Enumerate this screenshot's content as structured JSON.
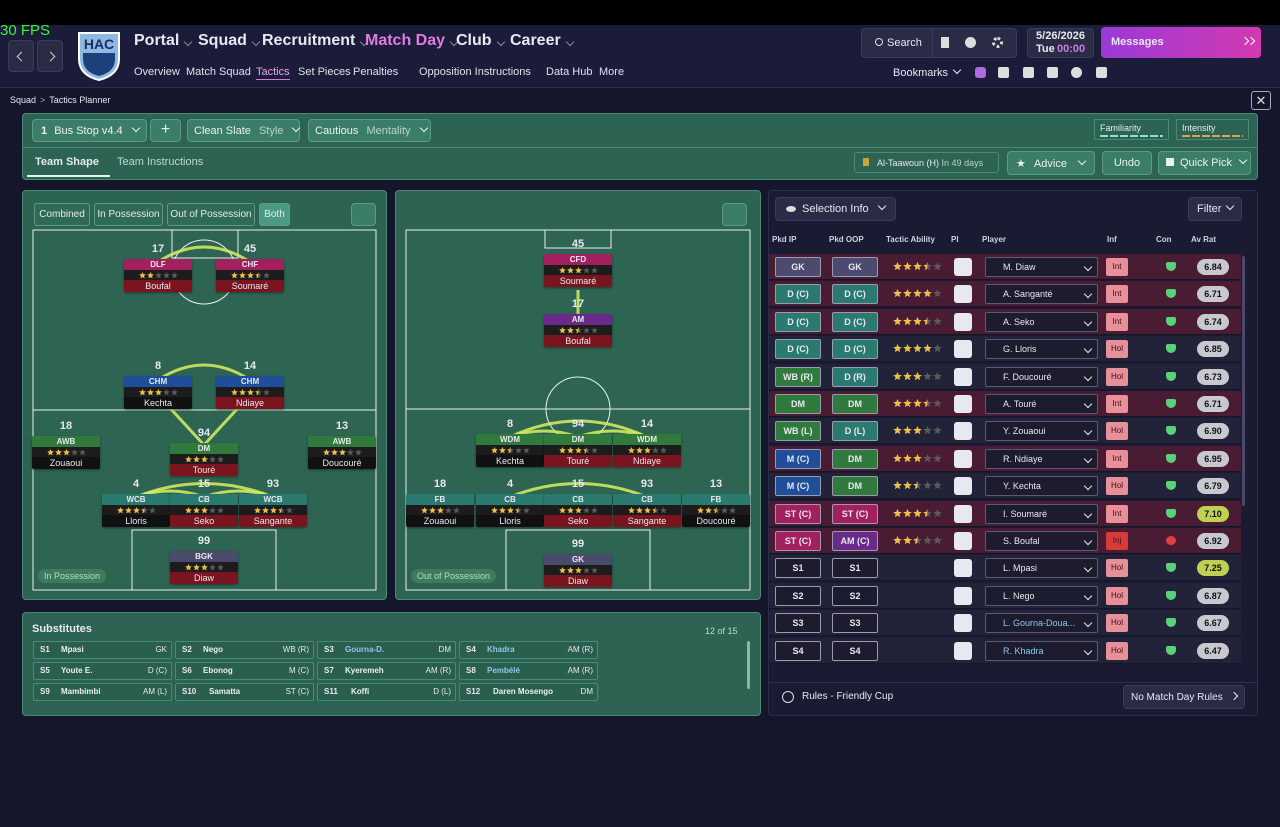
{
  "top": {
    "fps": "30 FPS",
    "badge": "HAC",
    "nav": [
      "Portal",
      "Squad",
      "Recruitment",
      "Match Day",
      "Club",
      "Career"
    ],
    "subnav": [
      "Overview",
      "Match Squad",
      "Tactics",
      "Set Pieces",
      "Penalties",
      "Opposition Instructions",
      "Data Hub",
      "More"
    ],
    "search": "Search",
    "date": "5/26/2026",
    "day": "Tue",
    "time": "00:00",
    "messages": "Messages",
    "bookmarks": "Bookmarks"
  },
  "breadcrumb": [
    "Squad",
    "Tactics Planner"
  ],
  "tactic_bar": {
    "slot": "1",
    "name": "Bus Stop v4.4",
    "style_value": "Clean Slate",
    "style_label": "Style",
    "mentality_value": "Cautious",
    "mentality_label": "Mentality",
    "familiarity": "Familiarity",
    "intensity": "Intensity"
  },
  "tabs": [
    "Team Shape",
    "Team Instructions"
  ],
  "next_match": {
    "opponent": "Al-Taawoun (H)",
    "when": "In 49 days"
  },
  "actions": [
    "Advice",
    "Undo",
    "Quick Pick"
  ],
  "view_toggles": [
    "Combined",
    "In Possession",
    "Out of Possession",
    "Both"
  ],
  "pitches": [
    {
      "label": "In Possession",
      "players": [
        {
          "number": "17",
          "role": "DLF",
          "name": "Boufal",
          "stars": 2,
          "color": "#a3205f",
          "bar": "#7a1520"
        },
        {
          "number": "45",
          "role": "CHF",
          "name": "Soumaré",
          "stars": 3.5,
          "color": "#a3205f",
          "bar": "#7a1520"
        },
        {
          "number": "8",
          "role": "CHM",
          "name": "Kechta",
          "stars": 3,
          "color": "#1f4f9a",
          "bar": "#111111"
        },
        {
          "number": "14",
          "role": "CHM",
          "name": "Ndiaye",
          "stars": 3.5,
          "color": "#1f4f9a",
          "bar": "#7a1520"
        },
        {
          "number": "18",
          "role": "AWB",
          "name": "Zouaoui",
          "stars": 3,
          "color": "#2f7a3c",
          "bar": "#111111"
        },
        {
          "number": "94",
          "role": "DM",
          "name": "Touré",
          "stars": 3,
          "color": "#2f7a3c",
          "bar": "#7a1520"
        },
        {
          "number": "13",
          "role": "AWB",
          "name": "Doucouré",
          "stars": 3,
          "color": "#2f7a3c",
          "bar": "#111111"
        },
        {
          "number": "4",
          "role": "WCB",
          "name": "Lloris",
          "stars": 3.5,
          "color": "#2a7a70",
          "bar": "#111111"
        },
        {
          "number": "15",
          "role": "CB",
          "name": "Seko",
          "stars": 3,
          "color": "#2a7a70",
          "bar": "#7a1520"
        },
        {
          "number": "93",
          "role": "WCB",
          "name": "Sangante",
          "stars": 3.5,
          "color": "#2a7a70",
          "bar": "#7a1520"
        },
        {
          "number": "99",
          "role": "BGK",
          "name": "Diaw",
          "stars": 3,
          "color": "#4a4a6a",
          "bar": "#7a1520"
        }
      ]
    },
    {
      "label": "Out of Possession",
      "players": [
        {
          "number": "45",
          "role": "CFD",
          "name": "Soumaré",
          "stars": 3,
          "color": "#a3205f",
          "bar": "#7a1520"
        },
        {
          "number": "17",
          "role": "AM",
          "name": "Boufal",
          "stars": 2.5,
          "color": "#6a2a8a",
          "bar": "#7a1520"
        },
        {
          "number": "8",
          "role": "WDM",
          "name": "Kechta",
          "stars": 2.5,
          "color": "#2f7a3c",
          "bar": "#111111"
        },
        {
          "number": "94",
          "role": "DM",
          "name": "Touré",
          "stars": 3.5,
          "color": "#2f7a3c",
          "bar": "#7a1520"
        },
        {
          "number": "14",
          "role": "WDM",
          "name": "Ndiaye",
          "stars": 3,
          "color": "#2f7a3c",
          "bar": "#7a1520"
        },
        {
          "number": "18",
          "role": "FB",
          "name": "Zouaoui",
          "stars": 3,
          "color": "#2a7a70",
          "bar": "#111111"
        },
        {
          "number": "4",
          "role": "CB",
          "name": "Lloris",
          "stars": 3.5,
          "color": "#2a7a70",
          "bar": "#111111"
        },
        {
          "number": "15",
          "role": "CB",
          "name": "Seko",
          "stars": 3,
          "color": "#2a7a70",
          "bar": "#7a1520"
        },
        {
          "number": "93",
          "role": "CB",
          "name": "Sangante",
          "stars": 3.5,
          "color": "#2a7a70",
          "bar": "#7a1520"
        },
        {
          "number": "13",
          "role": "FB",
          "name": "Doucouré",
          "stars": 2.5,
          "color": "#2a7a70",
          "bar": "#111111"
        },
        {
          "number": "99",
          "role": "GK",
          "name": "Diaw",
          "stars": 3,
          "color": "#4a4a6a",
          "bar": "#7a1520"
        }
      ]
    }
  ],
  "substitutes": {
    "title": "Substitutes",
    "count": "12 of 15",
    "rows": [
      {
        "slot": "S1",
        "name": "Mpasi",
        "position": "GK"
      },
      {
        "slot": "S2",
        "name": "Nego",
        "position": "WB (R)"
      },
      {
        "slot": "S3",
        "name": "Gourna-D.",
        "position": "DM"
      },
      {
        "slot": "S4",
        "name": "Khadra",
        "position": "AM (R)"
      },
      {
        "slot": "S5",
        "name": "Youte E.",
        "position": "D (C)"
      },
      {
        "slot": "S6",
        "name": "Ebonog",
        "position": "M (C)"
      },
      {
        "slot": "S7",
        "name": "Kyeremeh",
        "position": "AM (R)"
      },
      {
        "slot": "S8",
        "name": "Pembélé",
        "position": "AM (R)"
      },
      {
        "slot": "S9",
        "name": "Mambimbi",
        "position": "AM (L)"
      },
      {
        "slot": "S10",
        "name": "Samatta",
        "position": "ST (C)"
      },
      {
        "slot": "S11",
        "name": "Koffi",
        "position": "D (L)"
      },
      {
        "slot": "S12",
        "name": "Daren Mosengo",
        "position": "DM"
      }
    ]
  },
  "selection": {
    "button": "Selection Info",
    "filter": "Filter",
    "headers": [
      "Pkd IP",
      "Pkd OOP",
      "Tactic Ability",
      "PI",
      "Player",
      "Inf",
      "Con",
      "Av Rat"
    ],
    "rows": [
      {
        "ip": "GK",
        "oop": "GK",
        "ip_color": "#4c4a6e",
        "oop_color": "#4c4a6e",
        "ability": 3.5,
        "player": "M. Diaw",
        "inf": "Int",
        "rating": "6.84"
      },
      {
        "ip": "D (C)",
        "oop": "D (C)",
        "ip_color": "#2a7a70",
        "oop_color": "#2a7a70",
        "ability": 4,
        "player": "A. Sanganté",
        "inf": "Int",
        "rating": "6.71"
      },
      {
        "ip": "D (C)",
        "oop": "D (C)",
        "ip_color": "#2a7a70",
        "oop_color": "#2a7a70",
        "ability": 3.5,
        "player": "A. Seko",
        "inf": "Int",
        "rating": "6.74"
      },
      {
        "ip": "D (C)",
        "oop": "D (C)",
        "ip_color": "#2a7a70",
        "oop_color": "#2a7a70",
        "ability": 4,
        "player": "G. Lloris",
        "inf": "Hol",
        "rating": "6.85"
      },
      {
        "ip": "WB (R)",
        "oop": "D (R)",
        "ip_color": "#2f7a3c",
        "oop_color": "#2a7a70",
        "ability": 3,
        "player": "F. Doucouré",
        "inf": "Hol",
        "rating": "6.73"
      },
      {
        "ip": "DM",
        "oop": "DM",
        "ip_color": "#2f7a3c",
        "oop_color": "#2f7a3c",
        "ability": 3.5,
        "player": "A. Touré",
        "inf": "Int",
        "rating": "6.71"
      },
      {
        "ip": "WB (L)",
        "oop": "D (L)",
        "ip_color": "#2f7a3c",
        "oop_color": "#2a7a70",
        "ability": 3,
        "player": "Y. Zouaoui",
        "inf": "Hol",
        "rating": "6.90"
      },
      {
        "ip": "M (C)",
        "oop": "DM",
        "ip_color": "#1f4f9a",
        "oop_color": "#2f7a3c",
        "ability": 3,
        "player": "R. Ndiaye",
        "inf": "Int",
        "rating": "6.95"
      },
      {
        "ip": "M (C)",
        "oop": "DM",
        "ip_color": "#1f4f9a",
        "oop_color": "#2f7a3c",
        "ability": 2.5,
        "player": "Y. Kechta",
        "inf": "Hol",
        "rating": "6.79"
      },
      {
        "ip": "ST (C)",
        "oop": "ST (C)",
        "ip_color": "#a3205f",
        "oop_color": "#a3205f",
        "ability": 3.5,
        "player": "I. Soumaré",
        "inf": "Int",
        "rating": "7.10"
      },
      {
        "ip": "ST (C)",
        "oop": "AM (C)",
        "ip_color": "#a3205f",
        "oop_color": "#6a2a8a",
        "ability": 2.5,
        "player": "S. Boufal",
        "inf": "Inj",
        "rating": "6.92"
      },
      {
        "ip": "S1",
        "oop": "S1",
        "ip_color": "#1c1c2e",
        "oop_color": "#1c1c2e",
        "player": "L. Mpasi",
        "inf": "Hol",
        "rating": "7.25"
      },
      {
        "ip": "S2",
        "oop": "S2",
        "ip_color": "#1c1c2e",
        "oop_color": "#1c1c2e",
        "player": "L. Nego",
        "inf": "Hol",
        "rating": "6.87"
      },
      {
        "ip": "S3",
        "oop": "S3",
        "ip_color": "#1c1c2e",
        "oop_color": "#1c1c2e",
        "player": "L. Gourna-Doua...",
        "inf": "Hol",
        "rating": "6.67"
      },
      {
        "ip": "S4",
        "oop": "S4",
        "ip_color": "#1c1c2e",
        "oop_color": "#1c1c2e",
        "player": "R. Khadra",
        "inf": "Hol",
        "rating": "6.47"
      }
    ],
    "rules": "Rules - Friendly Cup",
    "match_day_rules": "No Match Day Rules"
  }
}
